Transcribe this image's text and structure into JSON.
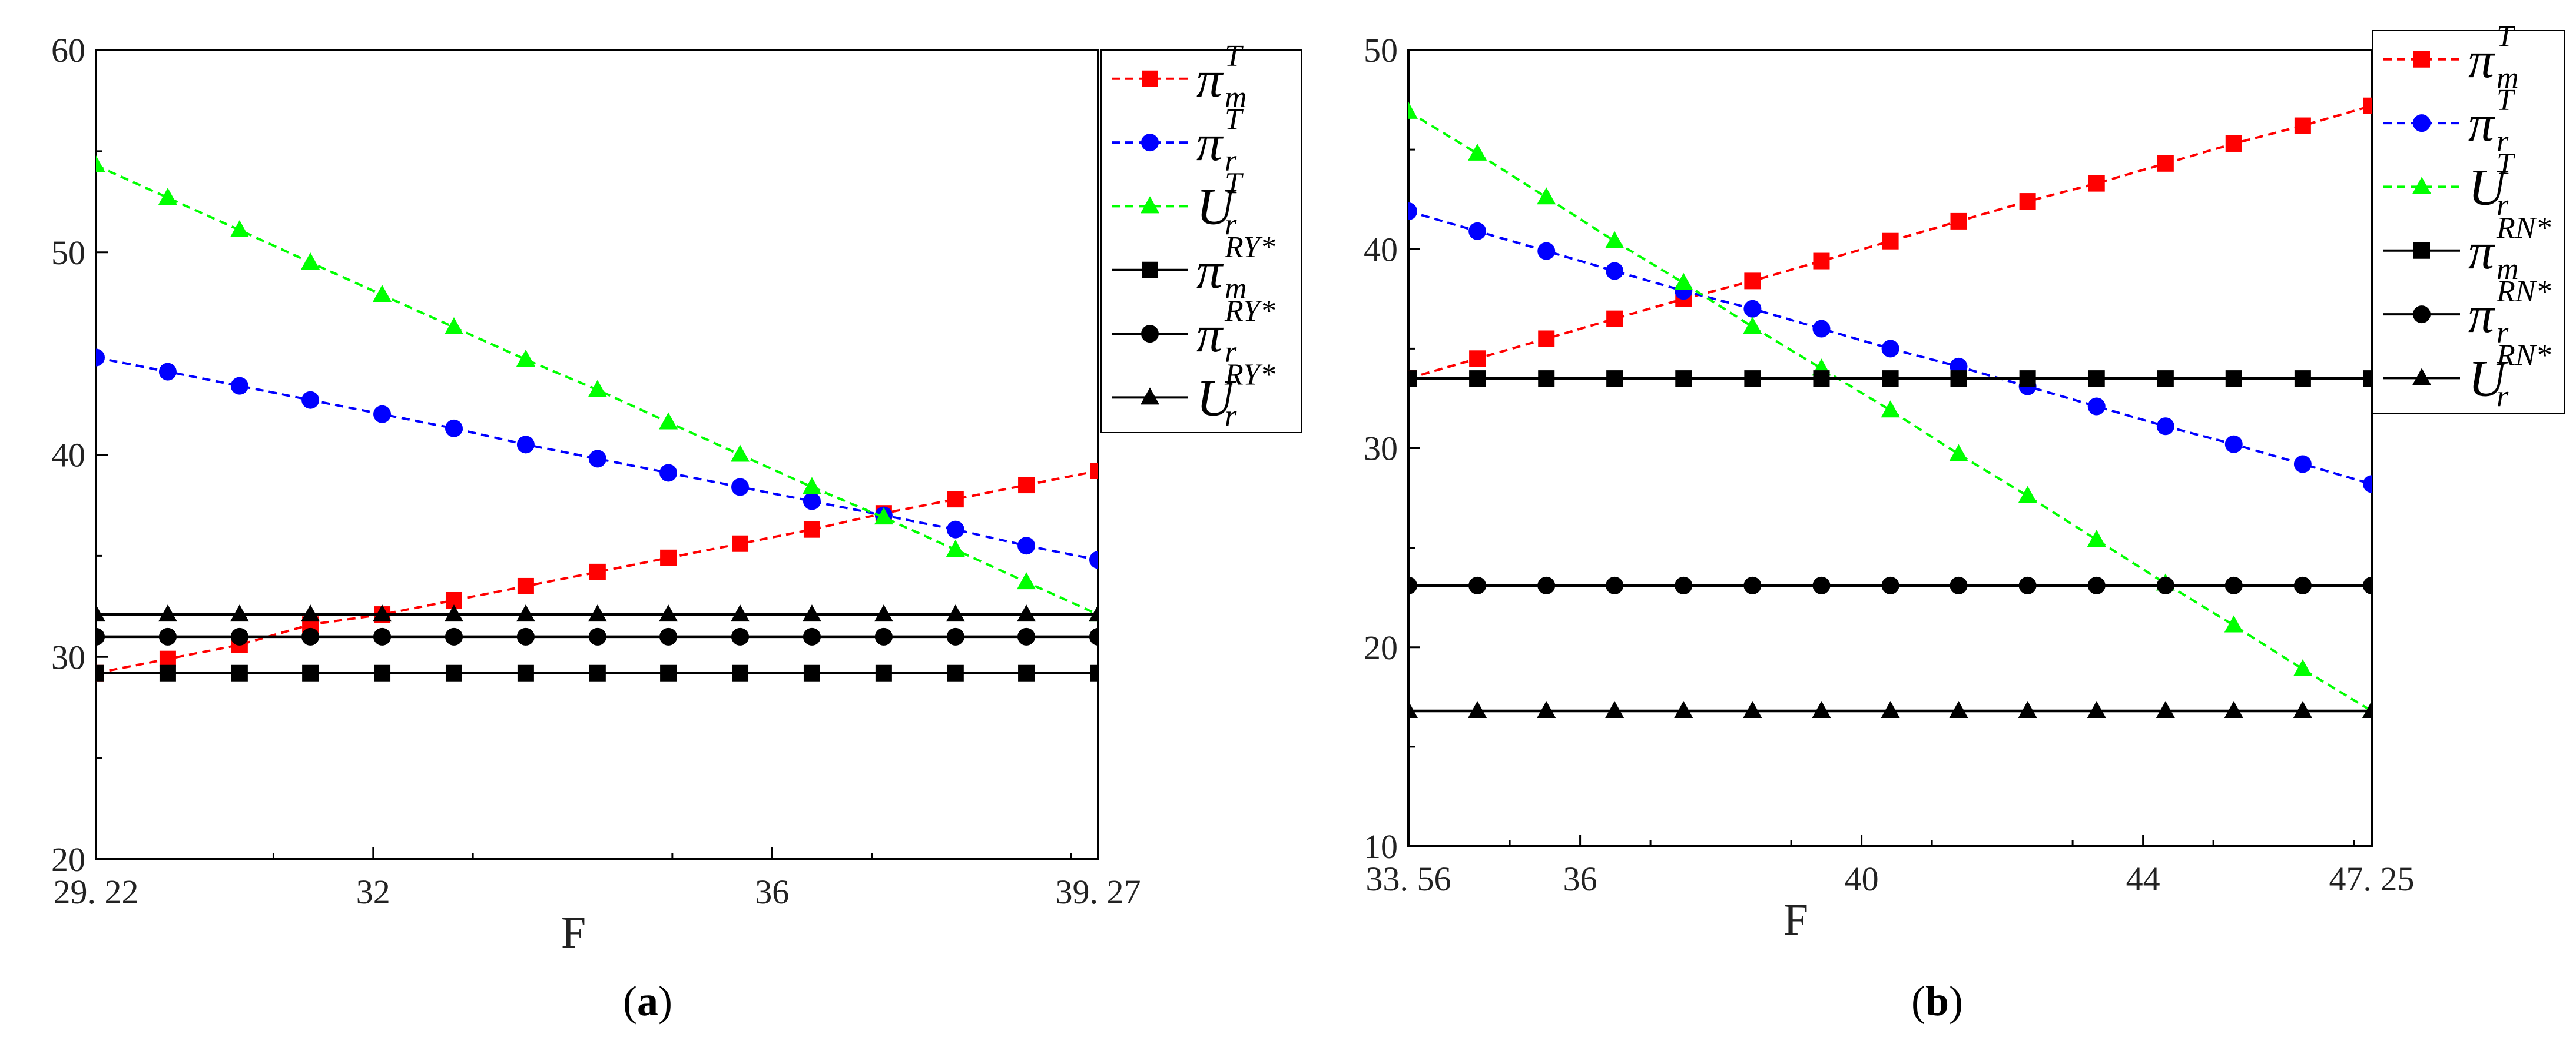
{
  "chart_data": [
    {
      "type": "line",
      "panel": "a",
      "caption": {
        "open": "(",
        "label": "a",
        "close": ")"
      },
      "xlabel": "F",
      "ylabel": "",
      "xlim": [
        29.22,
        39.27
      ],
      "ylim": [
        20,
        60
      ],
      "xticks": [
        29.22,
        32,
        36,
        39.27
      ],
      "xtick_labels": [
        "29. 22",
        "32",
        "36",
        "39. 27"
      ],
      "yticks": [
        20,
        30,
        40,
        50,
        60
      ],
      "ytick_labels": [
        "20",
        "30",
        "40",
        "50",
        "60"
      ],
      "x": [
        29.22,
        29.94,
        30.66,
        31.37,
        32.09,
        32.81,
        33.53,
        34.25,
        34.96,
        35.68,
        36.4,
        37.12,
        37.84,
        38.55,
        39.27
      ],
      "series": [
        {
          "symbol": "π",
          "sub": "m",
          "sup": "T",
          "color": "#ff0000",
          "marker": "square",
          "dashed": true,
          "values": [
            29.2,
            29.9,
            30.6,
            31.6,
            32.1,
            32.8,
            33.5,
            34.2,
            34.9,
            35.6,
            36.3,
            37.1,
            37.8,
            38.5,
            39.2
          ]
        },
        {
          "symbol": "π",
          "sub": "r",
          "sup": "T",
          "color": "#0000ff",
          "marker": "circle",
          "dashed": true,
          "values": [
            44.8,
            44.1,
            43.4,
            42.7,
            42.0,
            41.3,
            40.5,
            39.8,
            39.1,
            38.4,
            37.7,
            37.0,
            36.3,
            35.5,
            34.8
          ]
        },
        {
          "symbol": "U",
          "sub": "r",
          "sup": "T",
          "color": "#00ff00",
          "marker": "triangle",
          "dashed": true,
          "values": [
            54.3,
            52.7,
            51.1,
            49.5,
            47.9,
            46.3,
            44.7,
            43.2,
            41.6,
            40.0,
            38.4,
            36.9,
            35.3,
            33.7,
            32.1
          ]
        },
        {
          "symbol": "π",
          "sub": "m",
          "sup": "RY*",
          "color": "#000000",
          "marker": "square",
          "dashed": false,
          "values": [
            29.2,
            29.2,
            29.2,
            29.2,
            29.2,
            29.2,
            29.2,
            29.2,
            29.2,
            29.2,
            29.2,
            29.2,
            29.2,
            29.2,
            29.2
          ]
        },
        {
          "symbol": "π",
          "sub": "r",
          "sup": "RY*",
          "color": "#000000",
          "marker": "circle",
          "dashed": false,
          "values": [
            31.0,
            31.0,
            31.0,
            31.0,
            31.0,
            31.0,
            31.0,
            31.0,
            31.0,
            31.0,
            31.0,
            31.0,
            31.0,
            31.0,
            31.0
          ]
        },
        {
          "symbol": "U",
          "sub": "r",
          "sup": "RY*",
          "color": "#000000",
          "marker": "triangle",
          "dashed": false,
          "values": [
            32.1,
            32.1,
            32.1,
            32.1,
            32.1,
            32.1,
            32.1,
            32.1,
            32.1,
            32.1,
            32.1,
            32.1,
            32.1,
            32.1,
            32.1
          ]
        }
      ]
    },
    {
      "type": "line",
      "panel": "b",
      "caption": {
        "open": "(",
        "label": "b",
        "close": ")"
      },
      "xlabel": "F",
      "ylabel": "",
      "xlim": [
        33.56,
        47.25
      ],
      "ylim": [
        10,
        50
      ],
      "xticks": [
        33.56,
        36,
        40,
        44,
        47.25
      ],
      "xtick_labels": [
        "33. 56",
        "36",
        "40",
        "44",
        "47. 25"
      ],
      "yticks": [
        10,
        20,
        30,
        40,
        50
      ],
      "ytick_labels": [
        "10",
        "20",
        "30",
        "40",
        "50"
      ],
      "x": [
        33.56,
        34.54,
        35.52,
        36.49,
        37.47,
        38.45,
        39.43,
        40.41,
        41.38,
        42.36,
        43.34,
        44.32,
        45.29,
        46.27,
        47.25
      ],
      "series": [
        {
          "symbol": "π",
          "sub": "m",
          "sup": "T",
          "color": "#ff0000",
          "marker": "square",
          "dashed": true,
          "values": [
            33.5,
            34.5,
            35.5,
            36.5,
            37.5,
            38.4,
            39.4,
            40.4,
            41.4,
            42.4,
            43.3,
            44.3,
            45.3,
            46.2,
            47.2
          ]
        },
        {
          "symbol": "π",
          "sub": "r",
          "sup": "T",
          "color": "#0000ff",
          "marker": "circle",
          "dashed": true,
          "values": [
            41.9,
            40.9,
            39.9,
            38.9,
            37.9,
            37.0,
            36.0,
            35.0,
            34.1,
            33.1,
            32.1,
            31.1,
            30.2,
            29.2,
            28.2
          ]
        },
        {
          "symbol": "U",
          "sub": "r",
          "sup": "T",
          "color": "#00ff00",
          "marker": "triangle",
          "dashed": true,
          "values": [
            46.9,
            44.8,
            42.6,
            40.4,
            38.3,
            36.1,
            34.0,
            31.9,
            29.7,
            27.6,
            25.4,
            23.2,
            21.1,
            18.9,
            16.8
          ]
        },
        {
          "symbol": "π",
          "sub": "m",
          "sup": "RN*",
          "color": "#000000",
          "marker": "square",
          "dashed": false,
          "values": [
            33.5,
            33.5,
            33.5,
            33.5,
            33.5,
            33.5,
            33.5,
            33.5,
            33.5,
            33.5,
            33.5,
            33.5,
            33.5,
            33.5,
            33.5
          ]
        },
        {
          "symbol": "π",
          "sub": "r",
          "sup": "RN*",
          "color": "#000000",
          "marker": "circle",
          "dashed": false,
          "values": [
            23.1,
            23.1,
            23.1,
            23.1,
            23.1,
            23.1,
            23.1,
            23.1,
            23.1,
            23.1,
            23.1,
            23.1,
            23.1,
            23.1,
            23.1
          ]
        },
        {
          "symbol": "U",
          "sub": "r",
          "sup": "RN*",
          "color": "#000000",
          "marker": "triangle",
          "dashed": false,
          "values": [
            16.8,
            16.8,
            16.8,
            16.8,
            16.8,
            16.8,
            16.8,
            16.8,
            16.8,
            16.8,
            16.8,
            16.8,
            16.8,
            16.8,
            16.8
          ]
        }
      ]
    }
  ]
}
